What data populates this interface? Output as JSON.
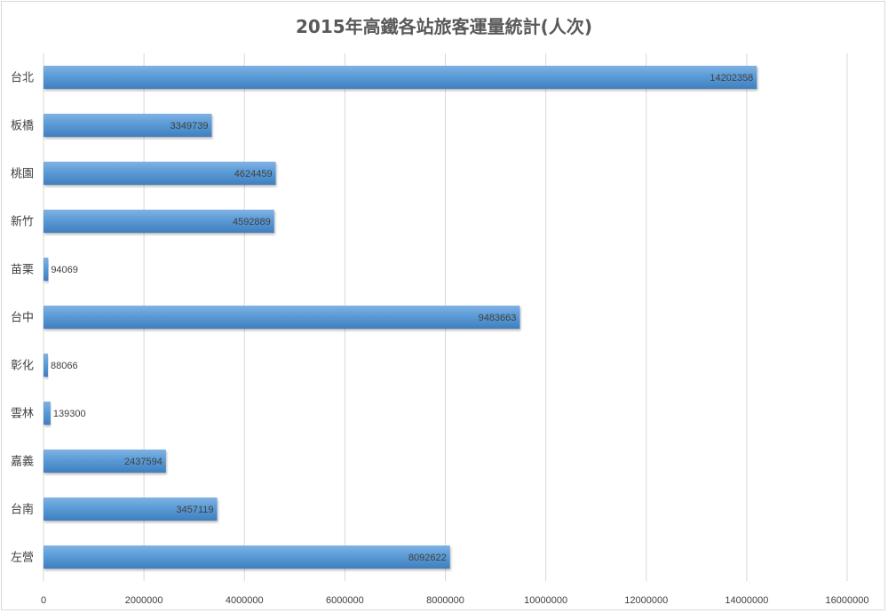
{
  "chart_data": {
    "type": "bar",
    "orientation": "horizontal",
    "title": "2015年高鐵各站旅客運量統計(人次)",
    "categories": [
      "台北",
      "板橋",
      "桃園",
      "新竹",
      "苗栗",
      "台中",
      "彰化",
      "雲林",
      "嘉義",
      "台南",
      "左營"
    ],
    "values": [
      14202358,
      3349739,
      4624459,
      4592889,
      94069,
      9483663,
      88066,
      139300,
      2437594,
      3457119,
      8092622
    ],
    "xlim": [
      0,
      16000000
    ],
    "xticks": [
      "0",
      "2000000",
      "4000000",
      "6000000",
      "8000000",
      "10000000",
      "12000000",
      "14000000",
      "16000000"
    ],
    "grid": true,
    "legend": "none",
    "colors": {
      "bar": "#5b9bd5",
      "bar_dark": "#3f7fbf",
      "grid": "#d9d9d9"
    }
  }
}
